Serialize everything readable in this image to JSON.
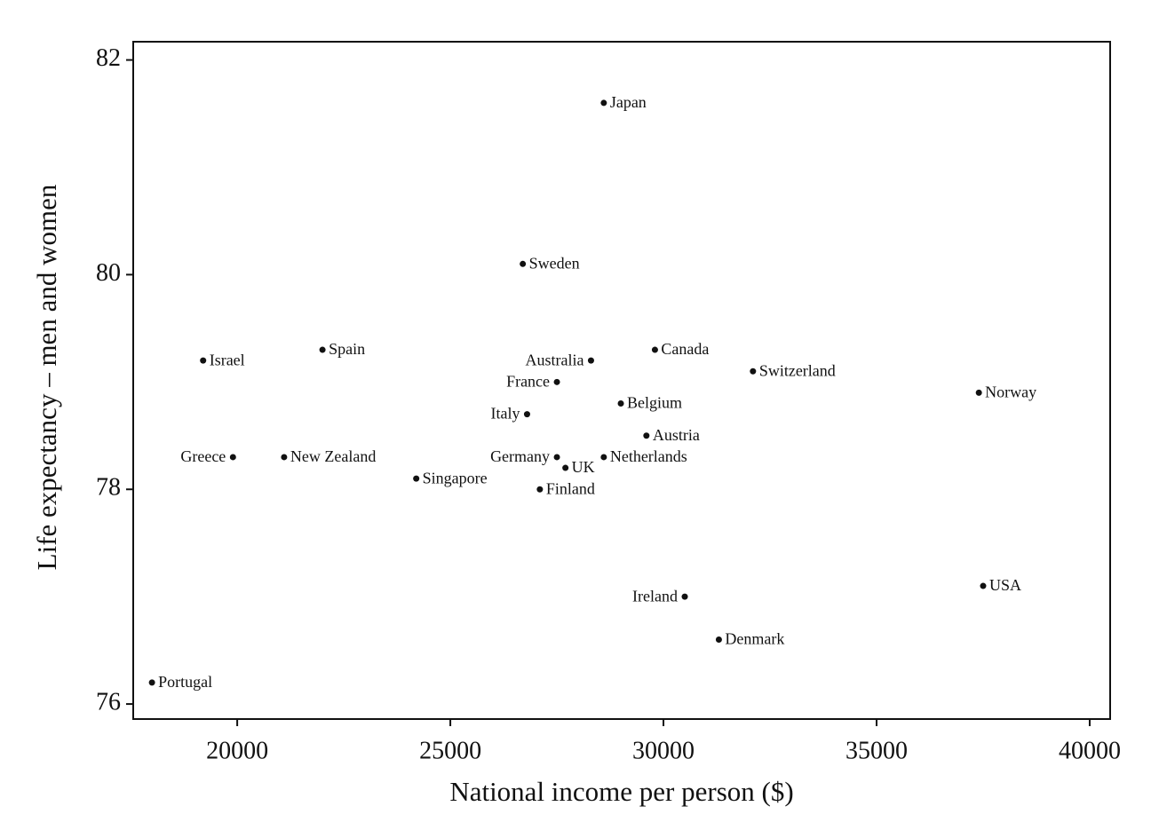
{
  "chart_data": {
    "type": "scatter",
    "x_label": "National income per person ($)",
    "y_label": "Life expectancy – men and women",
    "labels": [
      "Japan",
      "Sweden",
      "Israel",
      "Spain",
      "Australia",
      "Canada",
      "Switzerland",
      "France",
      "Norway",
      "Belgium",
      "Italy",
      "Austria",
      "Greece",
      "New Zealand",
      "Germany",
      "Netherlands",
      "UK",
      "Singapore",
      "Finland",
      "Ireland",
      "USA",
      "Denmark",
      "Portugal"
    ],
    "x": [
      28600,
      26700,
      19200,
      22000,
      28300,
      29800,
      32100,
      27500,
      37400,
      29000,
      26800,
      29600,
      19900,
      21100,
      27500,
      28600,
      27700,
      24200,
      27100,
      30500,
      37500,
      31300,
      18000
    ],
    "values": [
      81.6,
      80.1,
      79.2,
      79.3,
      79.2,
      79.3,
      79.1,
      79.0,
      78.9,
      78.8,
      78.7,
      78.5,
      78.3,
      78.3,
      78.3,
      78.3,
      78.2,
      78.1,
      78.0,
      77.0,
      77.1,
      76.6,
      76.2
    ],
    "color": "#111111",
    "xlim": [
      17560,
      40480
    ],
    "xticks": [
      20000,
      25000,
      30000,
      35000,
      40000
    ],
    "ylim": [
      75.86,
      82.17
    ],
    "yticks": [
      76,
      78,
      80,
      82
    ]
  }
}
